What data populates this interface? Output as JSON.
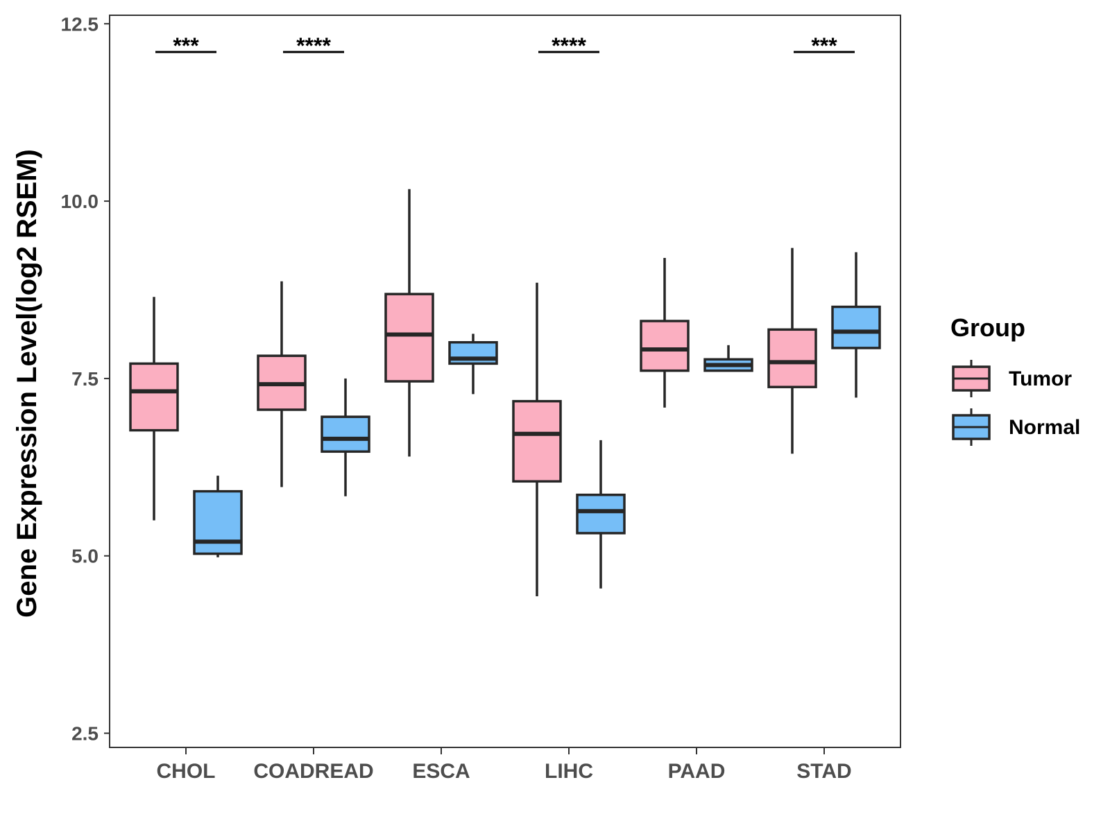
{
  "chart_data": {
    "type": "boxplot",
    "title": "",
    "xlabel": "",
    "ylabel": "Gene Expression Level(log2 RSEM)",
    "ylim": [
      2.3,
      12.62
    ],
    "yticks": [
      "2.5",
      "5.0",
      "7.5",
      "10.0",
      "12.5"
    ],
    "ytick_values": [
      2.5,
      5.0,
      7.5,
      10.0,
      12.5
    ],
    "categories": [
      "CHOL",
      "COADREAD",
      "ESCA",
      "LIHC",
      "PAAD",
      "STAD"
    ],
    "legend": {
      "title": "Group",
      "position": "right",
      "entries": [
        "Tumor",
        "Normal"
      ]
    },
    "colors": {
      "Tumor": "#fbafc1",
      "Normal": "#76bef7",
      "outline": "#262626",
      "axis": "#333333"
    },
    "series": [
      {
        "name": "Tumor",
        "boxes": [
          {
            "min": 5.5,
            "q1": 6.77,
            "median": 7.32,
            "q3": 7.71,
            "max": 8.65
          },
          {
            "min": 5.97,
            "q1": 7.06,
            "median": 7.42,
            "q3": 7.82,
            "max": 8.87
          },
          {
            "min": 6.4,
            "q1": 7.46,
            "median": 8.12,
            "q3": 8.69,
            "max": 10.17
          },
          {
            "min": 4.43,
            "q1": 6.05,
            "median": 6.72,
            "q3": 7.18,
            "max": 8.85
          },
          {
            "min": 7.09,
            "q1": 7.61,
            "median": 7.91,
            "q3": 8.31,
            "max": 9.2
          },
          {
            "min": 6.44,
            "q1": 7.38,
            "median": 7.73,
            "q3": 8.19,
            "max": 9.34
          }
        ]
      },
      {
        "name": "Normal",
        "boxes": [
          {
            "min": 4.98,
            "q1": 5.03,
            "median": 5.2,
            "q3": 5.91,
            "max": 6.13
          },
          {
            "min": 5.84,
            "q1": 6.47,
            "median": 6.65,
            "q3": 6.96,
            "max": 7.5
          },
          {
            "min": 7.28,
            "q1": 7.71,
            "median": 7.78,
            "q3": 8.01,
            "max": 8.13
          },
          {
            "min": 4.54,
            "q1": 5.32,
            "median": 5.63,
            "q3": 5.86,
            "max": 6.63
          },
          {
            "min": 7.61,
            "q1": 7.61,
            "median": 7.69,
            "q3": 7.77,
            "max": 7.97
          },
          {
            "min": 7.23,
            "q1": 7.93,
            "median": 8.16,
            "q3": 8.51,
            "max": 9.28
          }
        ]
      }
    ],
    "significance": [
      {
        "category": "CHOL",
        "label": "***"
      },
      {
        "category": "COADREAD",
        "label": "****"
      },
      {
        "category": "LIHC",
        "label": "****"
      },
      {
        "category": "STAD",
        "label": "***"
      }
    ]
  }
}
